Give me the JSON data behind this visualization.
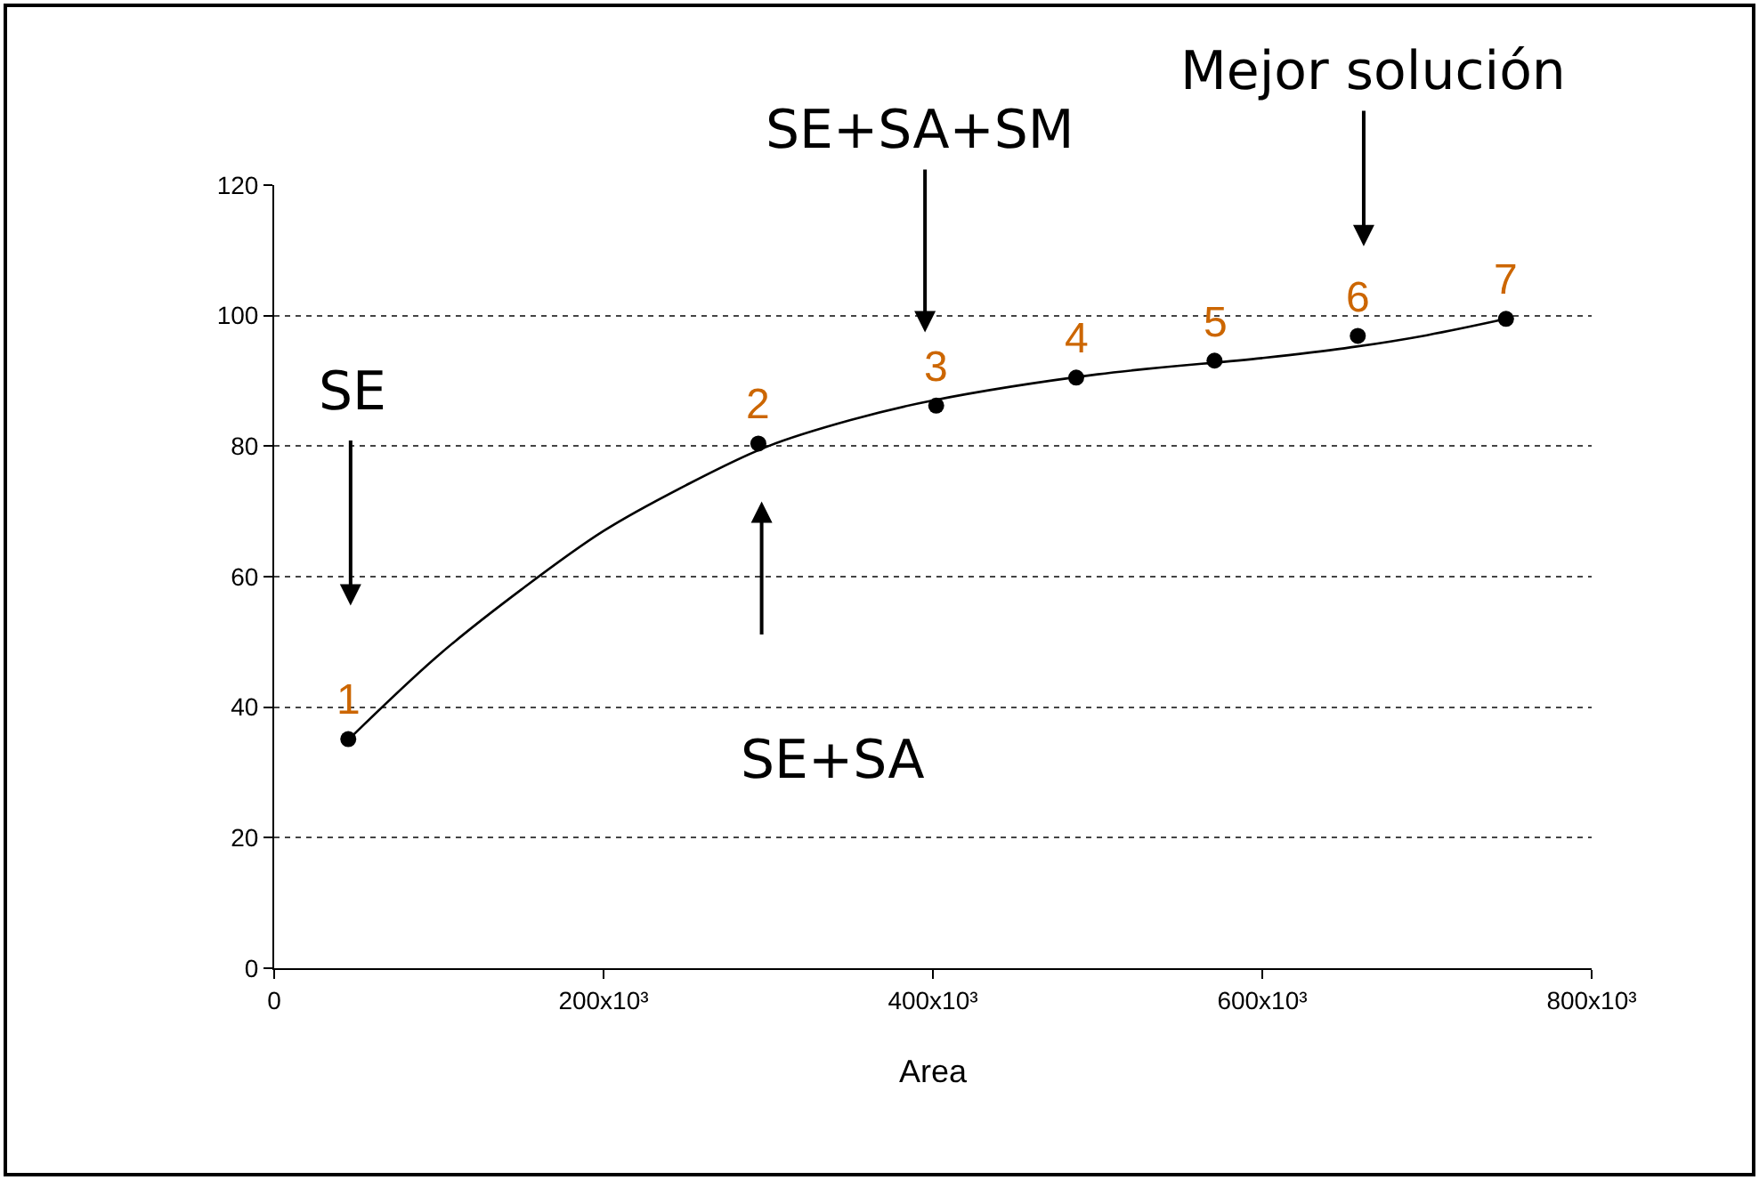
{
  "chart_data": {
    "type": "scatter",
    "xlabel": "Area",
    "xlim": [
      0,
      800000
    ],
    "ylim": [
      0,
      120
    ],
    "xticks": [
      0,
      {
        "value": 200000,
        "label": "200x10³"
      },
      {
        "value": 400000,
        "label": "400x10³"
      },
      {
        "value": 600000,
        "label": "600x10³"
      },
      {
        "value": 800000,
        "label": "800x10³"
      }
    ],
    "yticks": [
      0,
      20,
      40,
      60,
      80,
      100,
      120
    ],
    "grid": "y",
    "legend": false,
    "series": [
      {
        "color": "#000000",
        "marker": "circle",
        "x": [
          45000,
          294000,
          402000,
          487000,
          571000,
          658000,
          748000
        ],
        "values": [
          35.1,
          80.4,
          86.2,
          90.5,
          93.1,
          96.9,
          99.5
        ]
      },
      {
        "type": "line",
        "color": "#000000",
        "line_style": "solid",
        "x": [
          45000,
          100000,
          150000,
          200000,
          250000,
          300000,
          350000,
          400000,
          500000,
          600000,
          650000,
          700000,
          748000
        ],
        "values": [
          35,
          48,
          58,
          67,
          74,
          80,
          84,
          87,
          91,
          93.5,
          95,
          97,
          99.5
        ]
      }
    ],
    "annotations": [
      "SE",
      "SE+SA",
      "SE+SA+SM",
      "Mejor solución",
      {
        "text": "1",
        "x": 45000,
        "y": 35.1
      },
      {
        "text": "2",
        "x": 294000,
        "y": 80.4
      },
      {
        "text": "3",
        "x": 402000,
        "y": 86.2
      },
      {
        "text": "4",
        "x": 487000,
        "y": 90.5
      },
      {
        "text": "5",
        "x": 571000,
        "y": 93.1
      },
      {
        "text": "6",
        "x": 658000,
        "y": 96.9
      },
      {
        "text": "7",
        "x": 748000,
        "y": 99.5
      }
    ]
  }
}
